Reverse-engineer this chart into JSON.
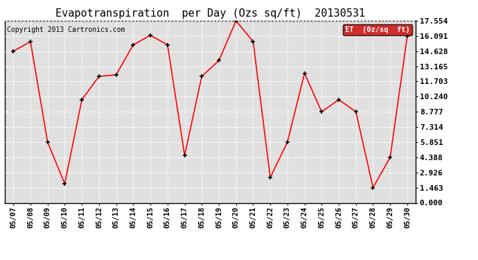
{
  "title": "Evapotranspiration  per Day (Ozs sq/ft)  20130531",
  "copyright": "Copyright 2013 Cartronics.com",
  "legend_label": "ET  (0z/sq  ft)",
  "legend_bg": "#cc0000",
  "legend_text_color": "#ffffff",
  "dates": [
    "05/07",
    "05/08",
    "05/09",
    "05/10",
    "05/11",
    "05/12",
    "05/13",
    "05/14",
    "05/15",
    "05/16",
    "05/17",
    "05/18",
    "05/19",
    "05/20",
    "05/21",
    "05/22",
    "05/23",
    "05/24",
    "05/25",
    "05/26",
    "05/27",
    "05/28",
    "05/29",
    "05/30"
  ],
  "values": [
    14.628,
    15.545,
    5.851,
    1.829,
    9.948,
    12.192,
    12.344,
    15.24,
    16.154,
    15.24,
    4.572,
    12.192,
    13.716,
    17.554,
    15.545,
    2.438,
    5.851,
    12.497,
    8.777,
    9.948,
    8.777,
    1.463,
    4.388,
    16.091
  ],
  "line_color": "#ff0000",
  "marker_color": "#000000",
  "bg_color": "#ffffff",
  "plot_bg_color": "#e0e0e0",
  "grid_color": "#ffffff",
  "yticks": [
    0.0,
    1.463,
    2.926,
    4.388,
    5.851,
    7.314,
    8.777,
    10.24,
    11.703,
    13.165,
    14.628,
    16.091,
    17.554
  ],
  "title_fontsize": 11,
  "copyright_fontsize": 7,
  "tick_fontsize": 7.5,
  "ytick_fontsize": 8
}
